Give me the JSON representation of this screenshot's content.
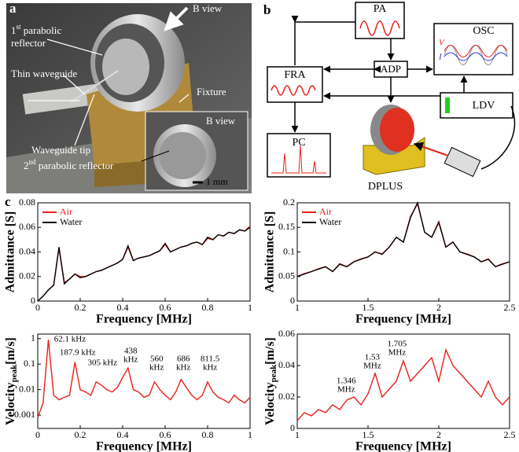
{
  "photo": {
    "panel": "a",
    "reflector1": {
      "num": "1",
      "sup": "st",
      "line1": "parabolic",
      "line2": "reflector"
    },
    "b_view": "B view",
    "thin_waveguide": "Thin waveguide",
    "fixture": "Fixture",
    "waveguide_tip": "Waveguide tip",
    "reflector2": {
      "num": "2",
      "sup": "nd",
      "rest": "parabolic reflector"
    },
    "inset_title": "B view",
    "scale_bar": "1 mm"
  },
  "diagram": {
    "panel": "b",
    "pa": "PA",
    "adp": "ADP",
    "osc": "OSC",
    "osc_symbols": [
      "V",
      "I"
    ],
    "fra": "FRA",
    "ldv": "LDV",
    "pc": "PC",
    "dplus": "DPLUS"
  },
  "panel_c": "c",
  "chart_data": [
    {
      "type": "line",
      "xlabel": "Frequency [MHz]",
      "ylabel": "Admittance [S]",
      "x": [
        0,
        0.025,
        0.05,
        0.075,
        0.1,
        0.125,
        0.15,
        0.175,
        0.2,
        0.225,
        0.25,
        0.275,
        0.3,
        0.325,
        0.35,
        0.375,
        0.4,
        0.425,
        0.45,
        0.475,
        0.5,
        0.525,
        0.55,
        0.575,
        0.6,
        0.625,
        0.65,
        0.675,
        0.7,
        0.725,
        0.75,
        0.775,
        0.8,
        0.825,
        0.85,
        0.875,
        0.9,
        0.925,
        0.95,
        0.975,
        1
      ],
      "series": [
        {
          "name": "Air",
          "color": "#e8201a",
          "values": [
            0,
            0.004,
            0.009,
            0.013,
            0.043,
            0.015,
            0.018,
            0.022,
            0.02,
            0.02,
            0.022,
            0.024,
            0.025,
            0.027,
            0.029,
            0.031,
            0.034,
            0.044,
            0.033,
            0.035,
            0.036,
            0.037,
            0.039,
            0.041,
            0.046,
            0.04,
            0.042,
            0.044,
            0.045,
            0.047,
            0.048,
            0.046,
            0.051,
            0.05,
            0.054,
            0.053,
            0.056,
            0.055,
            0.058,
            0.057,
            0.061
          ]
        },
        {
          "name": "Water",
          "color": "#000000",
          "values": [
            0,
            0.004,
            0.009,
            0.013,
            0.044,
            0.014,
            0.018,
            0.022,
            0.019,
            0.02,
            0.022,
            0.024,
            0.025,
            0.027,
            0.029,
            0.031,
            0.034,
            0.045,
            0.033,
            0.035,
            0.036,
            0.037,
            0.039,
            0.041,
            0.047,
            0.04,
            0.042,
            0.044,
            0.045,
            0.047,
            0.048,
            0.046,
            0.052,
            0.05,
            0.054,
            0.053,
            0.056,
            0.055,
            0.058,
            0.057,
            0.06
          ]
        }
      ],
      "xlim": [
        0,
        1
      ],
      "xticks": [
        0,
        0.2,
        0.4,
        0.6,
        0.8,
        1
      ],
      "ylim": [
        0,
        0.08
      ],
      "yticks": [
        0,
        0.02,
        0.04,
        0.06,
        0.08
      ],
      "legend": "upper left"
    },
    {
      "type": "line",
      "xlabel": "Frequency [MHz]",
      "ylabel": "Admittance [S]",
      "x": [
        1,
        1.05,
        1.1,
        1.15,
        1.2,
        1.25,
        1.3,
        1.35,
        1.4,
        1.45,
        1.5,
        1.55,
        1.6,
        1.65,
        1.7,
        1.75,
        1.8,
        1.85,
        1.9,
        1.95,
        2,
        2.05,
        2.1,
        2.15,
        2.2,
        2.25,
        2.3,
        2.35,
        2.4,
        2.45,
        2.5
      ],
      "series": [
        {
          "name": "Air",
          "color": "#e8201a",
          "values": [
            0.05,
            0.056,
            0.06,
            0.066,
            0.07,
            0.06,
            0.076,
            0.07,
            0.08,
            0.086,
            0.09,
            0.1,
            0.096,
            0.11,
            0.13,
            0.12,
            0.172,
            0.198,
            0.14,
            0.13,
            0.162,
            0.11,
            0.12,
            0.1,
            0.096,
            0.09,
            0.08,
            0.086,
            0.07,
            0.076,
            0.08
          ]
        },
        {
          "name": "Water",
          "color": "#000000",
          "values": [
            0.05,
            0.055,
            0.06,
            0.065,
            0.07,
            0.06,
            0.075,
            0.07,
            0.08,
            0.085,
            0.09,
            0.1,
            0.095,
            0.11,
            0.13,
            0.12,
            0.17,
            0.2,
            0.14,
            0.13,
            0.16,
            0.11,
            0.12,
            0.1,
            0.095,
            0.09,
            0.08,
            0.085,
            0.07,
            0.075,
            0.08
          ]
        }
      ],
      "xlim": [
        1,
        2.5
      ],
      "xticks": [
        1,
        1.5,
        2,
        2.5
      ],
      "ylim": [
        0,
        0.2
      ],
      "yticks": [
        0,
        0.05,
        0.1,
        0.15,
        0.2
      ],
      "legend": "upper left"
    },
    {
      "type": "line",
      "xlabel": "Frequency [MHz]",
      "ylabel": {
        "main": "Velocity",
        "sub": "peak",
        "unit": "[m/s]"
      },
      "log_y": true,
      "x": [
        0,
        0.025,
        0.05,
        0.075,
        0.1,
        0.125,
        0.15,
        0.175,
        0.2,
        0.225,
        0.25,
        0.275,
        0.3,
        0.325,
        0.35,
        0.375,
        0.4,
        0.425,
        0.45,
        0.475,
        0.5,
        0.525,
        0.55,
        0.575,
        0.6,
        0.625,
        0.65,
        0.675,
        0.7,
        0.725,
        0.75,
        0.775,
        0.8,
        0.825,
        0.85,
        0.875,
        0.9,
        0.925,
        0.95,
        0.975,
        1
      ],
      "series": [
        {
          "name": "Velocity",
          "color": "#e8201a",
          "values": [
            0.0008,
            0.003,
            0.9,
            0.006,
            0.004,
            0.005,
            0.006,
            0.12,
            0.01,
            0.008,
            0.006,
            0.02,
            0.015,
            0.01,
            0.008,
            0.012,
            0.03,
            0.07,
            0.01,
            0.008,
            0.005,
            0.006,
            0.02,
            0.01,
            0.006,
            0.004,
            0.008,
            0.025,
            0.012,
            0.006,
            0.004,
            0.006,
            0.02,
            0.008,
            0.005,
            0.004,
            0.003,
            0.006,
            0.004,
            0.003,
            0.005
          ]
        }
      ],
      "xlim": [
        0,
        1
      ],
      "xticks": [
        0,
        0.2,
        0.4,
        0.6,
        0.8,
        1
      ],
      "ylim": [
        0.0003,
        1.5
      ],
      "yticks": [
        0.001,
        0.01,
        0.1,
        1
      ],
      "annotations": [
        {
          "x": 0.0621,
          "lines": [
            "62.1 kHz"
          ]
        },
        {
          "x": 0.1879,
          "lines": [
            "187.9 kHz"
          ]
        },
        {
          "x": 0.305,
          "lines": [
            "305 kHz"
          ]
        },
        {
          "x": 0.438,
          "lines": [
            "438",
            "kHz"
          ]
        },
        {
          "x": 0.56,
          "lines": [
            "560",
            "kHz"
          ]
        },
        {
          "x": 0.686,
          "lines": [
            "686",
            "kHz"
          ]
        },
        {
          "x": 0.8115,
          "lines": [
            "811.5",
            "kHz"
          ]
        }
      ]
    },
    {
      "type": "line",
      "xlabel": "Frequency [MHz]",
      "ylabel": {
        "main": "Velocity",
        "sub": "peak",
        "unit": "[m/s]"
      },
      "x": [
        1,
        1.05,
        1.1,
        1.15,
        1.2,
        1.25,
        1.3,
        1.35,
        1.4,
        1.45,
        1.5,
        1.55,
        1.6,
        1.65,
        1.7,
        1.75,
        1.8,
        1.85,
        1.9,
        1.95,
        2,
        2.05,
        2.1,
        2.15,
        2.2,
        2.25,
        2.3,
        2.35,
        2.4,
        2.45,
        2.5
      ],
      "series": [
        {
          "name": "Velocity",
          "color": "#e8201a",
          "values": [
            0.005,
            0.01,
            0.008,
            0.012,
            0.01,
            0.015,
            0.012,
            0.018,
            0.02,
            0.015,
            0.022,
            0.035,
            0.02,
            0.025,
            0.03,
            0.043,
            0.03,
            0.035,
            0.04,
            0.045,
            0.03,
            0.05,
            0.04,
            0.035,
            0.03,
            0.025,
            0.02,
            0.03,
            0.02,
            0.015,
            0.02
          ]
        }
      ],
      "xlim": [
        1,
        2.5
      ],
      "xticks": [
        1,
        1.5,
        2,
        2.5
      ],
      "ylim": [
        0,
        0.06
      ],
      "yticks": [
        0,
        0.02,
        0.04,
        0.06
      ],
      "annotations": [
        {
          "x": 1.346,
          "lines": [
            "1.346",
            "MHz"
          ]
        },
        {
          "x": 1.53,
          "lines": [
            "1.53",
            "MHz"
          ]
        },
        {
          "x": 1.705,
          "lines": [
            "1.705",
            "MHz"
          ]
        }
      ]
    }
  ]
}
